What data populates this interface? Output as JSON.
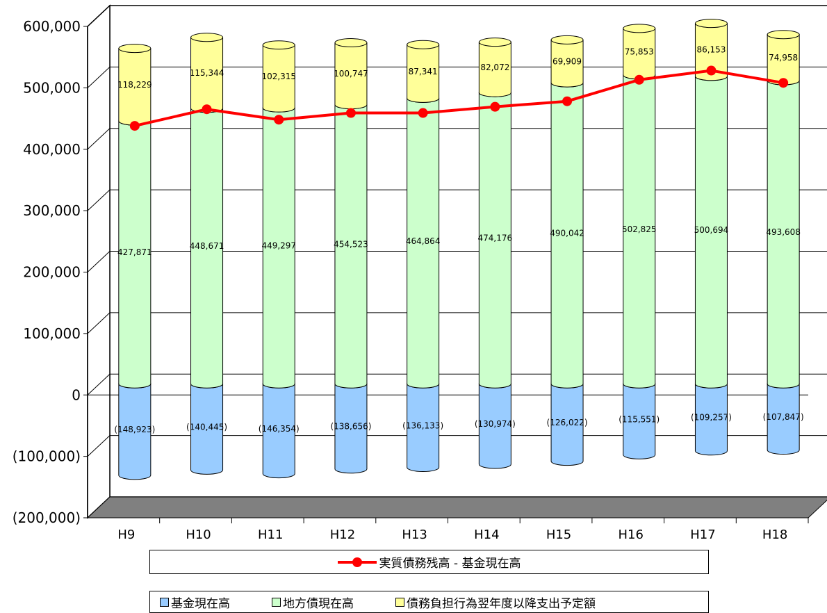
{
  "chart_data": {
    "type": "bar",
    "stacked": true,
    "three_d": true,
    "categories": [
      "H9",
      "H10",
      "H11",
      "H12",
      "H13",
      "H14",
      "H15",
      "H16",
      "H17",
      "H18"
    ],
    "series": [
      {
        "name": "基金現在高",
        "color": "#99ccff",
        "values": [
          -148923,
          -140445,
          -146354,
          -138656,
          -136133,
          -130974,
          -126022,
          -115551,
          -109257,
          -107847
        ],
        "labels": [
          "(148,923)",
          "(140,445)",
          "(146,354)",
          "(138,656)",
          "(136,133)",
          "(130,974)",
          "(126,022)",
          "(115,551)",
          "(109,257)",
          "(107,847)"
        ]
      },
      {
        "name": "地方債現在高",
        "color": "#ccffcc",
        "values": [
          427871,
          448671,
          449297,
          454523,
          464864,
          474176,
          490042,
          502825,
          500694,
          493608
        ],
        "labels": [
          "427,871",
          "448,671",
          "449,297",
          "454,523",
          "464,864",
          "474,176",
          "490,042",
          "502,825",
          "500,694",
          "493,608"
        ]
      },
      {
        "name": "債務負担行為翌年度以降支出予定額",
        "color": "#ffff99",
        "values": [
          118229,
          115344,
          102315,
          100747,
          87341,
          82072,
          69909,
          75853,
          86153,
          74958
        ],
        "labels": [
          "118,229",
          "115,344",
          "102,315",
          "100,747",
          "87,341",
          "82,072",
          "69,909",
          "75,853",
          "86,153",
          "74,958"
        ]
      }
    ],
    "line_series": {
      "name": "実質債務残高 - 基金現在高",
      "color": "#ff0000",
      "values": [
        420000,
        447000,
        430000,
        441000,
        441000,
        451000,
        460000,
        495000,
        510000,
        490000
      ]
    },
    "yticks": [
      "600,000",
      "500,000",
      "400,000",
      "300,000",
      "200,000",
      "100,000",
      "0",
      "(100,000)",
      "(200,000)"
    ],
    "ylim": [
      -200000,
      600000
    ],
    "grid": true,
    "legend_position": "bottom"
  },
  "legend": {
    "line_label": "実質債務残高 - 基金現在高",
    "bar_labels": [
      "基金現在高",
      "地方債現在高",
      "債務負担行為翌年度以降支出予定額"
    ]
  }
}
